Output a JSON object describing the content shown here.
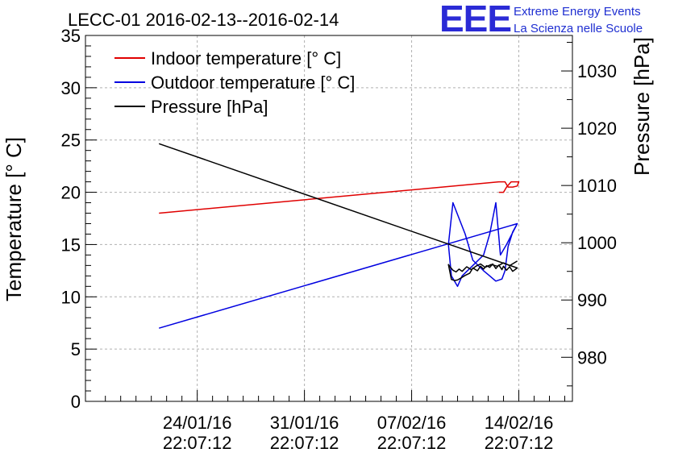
{
  "chart_data": {
    "type": "line",
    "title": "LECC-01 2016-02-13--2016-02-14",
    "logo": {
      "mark": "EEE",
      "line1": "Extreme Energy Events",
      "line2": "La Scienza nelle Scuole"
    },
    "ylabel_left": "Temperature [° C]",
    "ylabel_right": "Pressure [hPa]",
    "x_range_days": [
      -7.3,
      24.5
    ],
    "x_ticks": [
      {
        "day": 0,
        "line1": "24/01/16",
        "line2": "22:07:12"
      },
      {
        "day": 7,
        "line1": "31/01/16",
        "line2": "22:07:12"
      },
      {
        "day": 14,
        "line1": "07/02/16",
        "line2": "22:07:12"
      },
      {
        "day": 21,
        "line1": "14/02/16",
        "line2": "22:07:12"
      }
    ],
    "y_left_range": [
      0,
      35
    ],
    "y_left_ticks": [
      0,
      5,
      10,
      15,
      20,
      25,
      30,
      35
    ],
    "y_right_range": [
      972.3,
      1036.2
    ],
    "y_right_ticks": [
      980,
      990,
      1000,
      1010,
      1020,
      1030
    ],
    "grid": true,
    "legend_position": "top-left",
    "series": [
      {
        "name": "Indoor temperature [° C]",
        "axis": "left",
        "color": "#e00000",
        "x": [
          -2.5,
          19.7,
          20.1,
          20.3,
          20.6,
          20.9,
          21.0,
          20.5,
          20.2,
          20.0,
          19.7
        ],
        "y": [
          18,
          21,
          21,
          20.5,
          20.5,
          20.6,
          21,
          21,
          20.5,
          20.0,
          20.0
        ]
      },
      {
        "name": "Outdoor temperature [° C]",
        "axis": "left",
        "color": "#0000e0",
        "x": [
          -2.5,
          20.9,
          20.6,
          20.3,
          20.1,
          19.9,
          19.5,
          19.1,
          18.7,
          18.0,
          17.5,
          16.7,
          16.4,
          16.6,
          17.0,
          17.3,
          18.0,
          18.7,
          19.1,
          19.5,
          19.8,
          20.2,
          20.9
        ],
        "y": [
          7,
          17.0,
          16.2,
          14.8,
          12.5,
          11.7,
          11.5,
          12.0,
          12.5,
          13.5,
          16.0,
          19.0,
          15.0,
          12.0,
          11.0,
          12.0,
          13.0,
          14.0,
          16.0,
          19.0,
          14.0,
          15.0,
          17.0
        ]
      },
      {
        "name": "Pressure [hPa]",
        "axis": "right",
        "color": "#000000",
        "x": [
          -2.5,
          20.9,
          20.6,
          20.4,
          20.2,
          20.0,
          19.9,
          19.7,
          19.5,
          19.3,
          19.1,
          18.9,
          18.7,
          18.5,
          18.3,
          18.0,
          17.8,
          17.5,
          17.2,
          17.0,
          16.8,
          16.6,
          16.4,
          16.5,
          16.7,
          16.9,
          17.1,
          17.3,
          17.6,
          17.9,
          18.2,
          18.5,
          18.8,
          19.2,
          19.6,
          20.0,
          20.4,
          20.9
        ],
        "y": [
          1017.3,
          995.6,
          995.0,
          995.8,
          995.2,
          995.9,
          995.3,
          996.1,
          995.5,
          996.3,
          995.7,
          996.0,
          995.4,
          995.9,
          995.1,
          995.6,
          994.7,
          994.3,
          993.8,
          993.5,
          993.4,
          993.6,
          996.2,
          995.8,
          995.2,
          994.9,
          995.4,
          995.0,
          995.8,
          995.3,
          995.9,
          996.3,
          995.7,
          996.2,
          995.9,
          996.5,
          996.0,
          996.8
        ]
      }
    ]
  }
}
